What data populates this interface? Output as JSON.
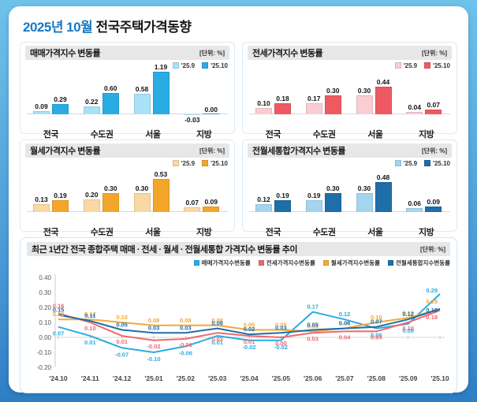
{
  "page_title": {
    "accent": "2025년 10월",
    "rest": " 전국주택가격동향"
  },
  "bar_panels": [
    {
      "title": "매매가격지수 변동률",
      "unit": "[단위: %]",
      "legend": [
        "'25.9",
        "'25.10"
      ],
      "color_prev": "#a9e1f7",
      "color_curr": "#29ace3",
      "categories": [
        "전국",
        "수도권",
        "서울",
        "지방"
      ],
      "prev_values": [
        0.09,
        0.22,
        0.58,
        -0.03
      ],
      "curr_values": [
        0.29,
        0.6,
        1.19,
        0.0
      ]
    },
    {
      "title": "전세가격지수 변동률",
      "unit": "[단위: %]",
      "legend": [
        "'25.9",
        "'25.10"
      ],
      "color_prev": "#f9cdd2",
      "color_curr": "#ef5a62",
      "categories": [
        "전국",
        "수도권",
        "서울",
        "지방"
      ],
      "prev_values": [
        0.1,
        0.17,
        0.3,
        0.04
      ],
      "curr_values": [
        0.18,
        0.3,
        0.44,
        0.07
      ]
    },
    {
      "title": "월세가격지수 변동률",
      "unit": "[단위: %]",
      "legend": [
        "'25.9",
        "'25.10"
      ],
      "color_prev": "#fad8a3",
      "color_curr": "#f4a62a",
      "categories": [
        "전국",
        "수도권",
        "서울",
        "지방"
      ],
      "prev_values": [
        0.13,
        0.2,
        0.3,
        0.07
      ],
      "curr_values": [
        0.19,
        0.3,
        0.53,
        0.09
      ]
    },
    {
      "title": "전월세통합가격지수 변동률",
      "unit": "[단위: %]",
      "legend": [
        "'25.9",
        "'25.10"
      ],
      "color_prev": "#a5d5ee",
      "color_curr": "#1e6ea8",
      "categories": [
        "전국",
        "수도권",
        "서울",
        "지방"
      ],
      "prev_values": [
        0.12,
        0.19,
        0.3,
        0.06
      ],
      "curr_values": [
        0.19,
        0.3,
        0.48,
        0.09
      ]
    }
  ],
  "chart_data": {
    "type": "line",
    "title": "최근 1년간 전국 종합주택 매매 · 전세 · 월세 · 전월세통합 가격지수 변동률 추이",
    "unit": "[단위: %]",
    "x": [
      "'24.10",
      "'24.11",
      "'24.12",
      "'25.01",
      "'25.02",
      "'25.03",
      "'25.04",
      "'25.05",
      "'25.06",
      "'25.07",
      "'25.08",
      "'25.09",
      "'25.10"
    ],
    "y_ticks": [
      0.4,
      0.3,
      0.2,
      0.1,
      0.0,
      -0.1,
      -0.2
    ],
    "ylim": [
      -0.2,
      0.4
    ],
    "legend_position": "top-right",
    "series": [
      {
        "name": "매매가격지수변동률",
        "color": "#29ace3",
        "values": [
          0.07,
          0.01,
          -0.07,
          -0.1,
          -0.06,
          0.01,
          -0.02,
          -0.02,
          0.17,
          0.12,
          0.06,
          0.09,
          0.29
        ]
      },
      {
        "name": "전세가격지수변동률",
        "color": "#f0686d",
        "values": [
          0.16,
          0.1,
          0.01,
          -0.02,
          -0.01,
          0.03,
          0.01,
          0.0,
          0.03,
          0.04,
          0.04,
          0.1,
          0.18
        ]
      },
      {
        "name": "월세가격지수변동률",
        "color": "#f2a93b",
        "values": [
          0.12,
          0.12,
          0.1,
          0.08,
          0.08,
          0.08,
          0.05,
          0.05,
          0.04,
          0.06,
          0.1,
          0.13,
          0.19
        ]
      },
      {
        "name": "전월세통합지수변동률",
        "color": "#1e6ea8",
        "values": [
          0.15,
          0.11,
          0.05,
          0.03,
          0.03,
          0.06,
          0.02,
          0.03,
          0.05,
          0.06,
          0.07,
          0.12,
          0.19
        ]
      }
    ]
  }
}
